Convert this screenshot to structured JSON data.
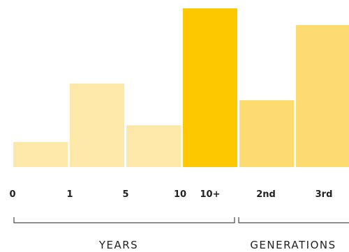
{
  "chart_data": {
    "type": "bar",
    "categories": [
      "0–1",
      "1–5",
      "5–10",
      "10+",
      "2nd",
      "3rd"
    ],
    "values": [
      15,
      50,
      25,
      95,
      40,
      85
    ],
    "ylim": [
      0,
      100
    ],
    "grid": false,
    "colors": [
      "#fde7a9",
      "#fde7a9",
      "#fde7a9",
      "#fec800",
      "#fedb70",
      "#fedb70"
    ],
    "tick_labels": [
      "0",
      "1",
      "5",
      "10",
      "10+",
      "2nd",
      "3rd"
    ],
    "groups": [
      {
        "label": "YEARS"
      },
      {
        "label": "GENERATIONS"
      }
    ]
  }
}
